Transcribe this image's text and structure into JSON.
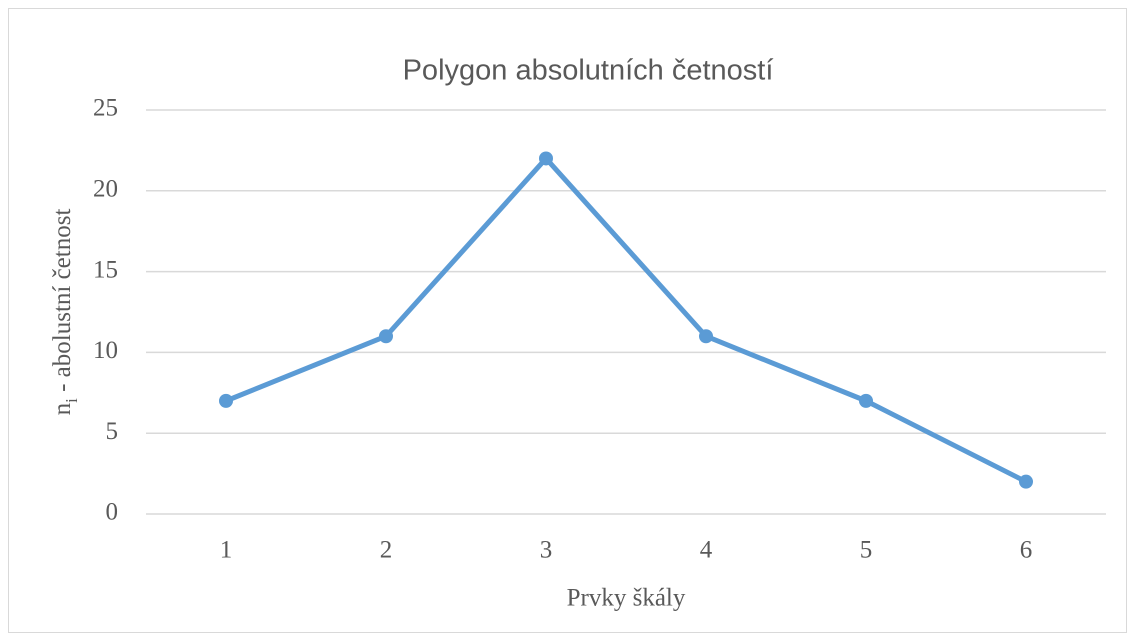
{
  "chart_data": {
    "type": "line",
    "title": "Polygon absolutních četností",
    "categories": [
      "1",
      "2",
      "3",
      "4",
      "5",
      "6"
    ],
    "values": [
      7,
      11,
      22,
      11,
      7,
      2
    ],
    "color": "#5b9bd5",
    "xlabel": "Prvky škály",
    "ylabel": {
      "base": "n",
      "subscript": "i",
      "rest": " - abolustní četnost"
    },
    "ylim": [
      0,
      25
    ],
    "yticks": [
      0,
      5,
      10,
      15,
      20,
      25
    ],
    "grid": true
  }
}
